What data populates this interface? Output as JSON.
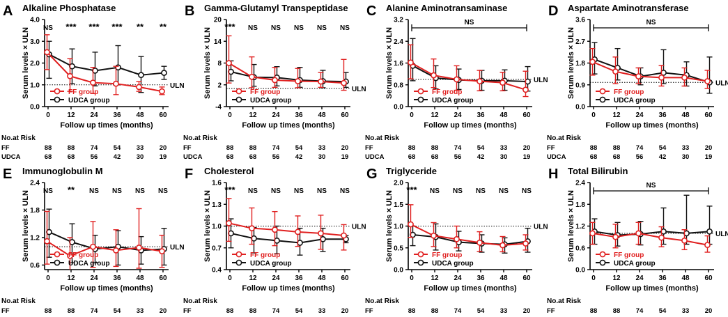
{
  "colors": {
    "ff": "#e02020",
    "udca": "#111111"
  },
  "common": {
    "xlabel": "Follow up times (months)",
    "ylabel": "Serum levels × ULN",
    "x_ticks": [
      "0",
      "12",
      "24",
      "36",
      "48",
      "60"
    ],
    "uln_label": "ULN",
    "legend_ff": "FF group",
    "legend_udca": "UDCA group",
    "risk_title": "No.at Risk",
    "risk_rows": [
      {
        "label": "FF",
        "values": [
          "88",
          "88",
          "74",
          "54",
          "33",
          "20"
        ]
      },
      {
        "label": "UDCA",
        "values": [
          "68",
          "68",
          "56",
          "42",
          "30",
          "19"
        ]
      }
    ]
  },
  "chart_data": [
    {
      "letter": "A",
      "title": "Alkaline Phosphatase",
      "type": "line",
      "y_ticks": [
        "0.0",
        "1.0",
        "2.0",
        "3.0",
        "4.0"
      ],
      "ylim": [
        0,
        4
      ],
      "uln": 1.0,
      "legend": "bottom-left",
      "sig_bracket": null,
      "sig": [
        "NS",
        "***",
        "***",
        "***",
        "**",
        "**"
      ],
      "x": [
        0,
        12,
        24,
        36,
        48,
        60
      ],
      "series": [
        {
          "name": "FF group",
          "values": [
            2.5,
            1.4,
            1.1,
            1.05,
            0.9,
            0.7
          ],
          "err_hi": [
            0.8,
            0.8,
            0.7,
            0.8,
            0.25,
            0.2
          ],
          "err_lo": [
            0.8,
            0.7,
            0.5,
            0.5,
            0.2,
            0.15
          ]
        },
        {
          "name": "UDCA group",
          "values": [
            2.4,
            1.85,
            1.65,
            1.8,
            1.45,
            1.55
          ],
          "err_hi": [
            0.6,
            0.8,
            0.85,
            1.0,
            0.85,
            0.3
          ],
          "err_lo": [
            1.1,
            0.8,
            0.7,
            0.8,
            0.8,
            0.3
          ]
        }
      ]
    },
    {
      "letter": "B",
      "title": "Gamma-Glutamyl Transpeptidase",
      "type": "line",
      "y_ticks": [
        "-4",
        "2",
        "8",
        "14",
        "20"
      ],
      "ylim": [
        -4,
        20
      ],
      "uln": 1.0,
      "legend": "bottom-left",
      "sig_bracket": null,
      "sig": [
        "***",
        "NS",
        "NS",
        "NS",
        "NS",
        "NS"
      ],
      "x": [
        0,
        12,
        24,
        36,
        48,
        60
      ],
      "series": [
        {
          "name": "FF group",
          "values": [
            8.0,
            4.2,
            3.3,
            3.0,
            2.9,
            2.5
          ],
          "err_hi": [
            7.5,
            5.5,
            3.5,
            3.5,
            2.5,
            6.5
          ],
          "err_lo": [
            5.5,
            3.0,
            2.0,
            1.8,
            1.6,
            2.0
          ]
        },
        {
          "name": "UDCA group",
          "values": [
            5.6,
            4.1,
            4.0,
            3.3,
            3.0,
            2.9
          ],
          "err_hi": [
            3.0,
            3.5,
            3.0,
            3.5,
            3.0,
            2.5
          ],
          "err_lo": [
            2.5,
            2.5,
            2.3,
            2.0,
            1.8,
            1.6
          ]
        }
      ]
    },
    {
      "letter": "C",
      "title": "Alanine Aminotransaminase",
      "type": "line",
      "y_ticks": [
        "0.0",
        "0.8",
        "1.6",
        "2.4",
        "3.2"
      ],
      "ylim": [
        0,
        3.2
      ],
      "uln": 1.0,
      "legend": "bottom-left",
      "sig_bracket": "NS",
      "sig": [],
      "x": [
        0,
        12,
        24,
        36,
        48,
        60
      ],
      "series": [
        {
          "name": "FF group",
          "values": [
            1.62,
            1.15,
            1.0,
            0.93,
            0.88,
            0.62
          ],
          "err_hi": [
            0.65,
            0.6,
            0.5,
            0.4,
            0.38,
            0.68
          ],
          "err_lo": [
            0.6,
            0.45,
            0.4,
            0.35,
            0.3,
            0.25
          ]
        },
        {
          "name": "UDCA group",
          "values": [
            1.5,
            1.05,
            0.98,
            0.95,
            0.95,
            0.92
          ],
          "err_hi": [
            1.0,
            0.45,
            0.4,
            0.38,
            0.4,
            0.55
          ],
          "err_lo": [
            0.55,
            0.4,
            0.35,
            0.35,
            0.35,
            0.35
          ]
        }
      ]
    },
    {
      "letter": "D",
      "title": "Aspartate Aminotransferase",
      "type": "line",
      "y_ticks": [
        "0.0",
        "0.9",
        "1.8",
        "2.7",
        "3.6"
      ],
      "ylim": [
        0,
        3.6
      ],
      "uln": 1.0,
      "legend": "bottom-left",
      "sig_bracket": "NS",
      "sig": [],
      "x": [
        0,
        12,
        24,
        36,
        48,
        60
      ],
      "series": [
        {
          "name": "FF group",
          "values": [
            1.85,
            1.45,
            1.25,
            1.2,
            1.2,
            1.05
          ],
          "err_hi": [
            0.55,
            0.6,
            0.35,
            0.5,
            0.4,
            0.45
          ],
          "err_lo": [
            0.55,
            0.5,
            0.3,
            0.35,
            0.35,
            0.3
          ]
        },
        {
          "name": "UDCA group",
          "values": [
            1.95,
            1.6,
            1.25,
            1.4,
            1.3,
            1.0
          ],
          "err_hi": [
            0.7,
            0.8,
            0.35,
            0.95,
            0.55,
            1.05
          ],
          "err_lo": [
            0.6,
            0.5,
            0.35,
            0.45,
            0.45,
            0.45
          ]
        }
      ]
    },
    {
      "letter": "E",
      "title": "Immunoglobulin M",
      "type": "line",
      "y_ticks": [
        "0.6",
        "1.2",
        "1.8",
        "2.4"
      ],
      "ylim": [
        0.5,
        2.4
      ],
      "y_tick_vals": [
        0.6,
        1.2,
        1.8,
        2.4
      ],
      "uln": 1.0,
      "legend": "bottom-left",
      "sig_bracket": null,
      "sig": [
        "NS",
        "**",
        "NS",
        "NS",
        "NS",
        "NS"
      ],
      "x": [
        0,
        12,
        24,
        36,
        48,
        60
      ],
      "series": [
        {
          "name": "FF group",
          "values": [
            1.12,
            0.8,
            1.0,
            0.92,
            0.98,
            0.9
          ],
          "err_hi": [
            0.65,
            0.4,
            0.55,
            0.45,
            0.85,
            0.35
          ],
          "err_lo": [
            0.5,
            0.3,
            0.45,
            0.35,
            0.45,
            0.35
          ]
        },
        {
          "name": "UDCA group",
          "values": [
            1.32,
            1.1,
            0.95,
            1.0,
            0.92,
            0.95
          ],
          "err_hi": [
            0.5,
            0.4,
            0.3,
            0.35,
            0.3,
            0.45
          ],
          "err_lo": [
            0.55,
            0.45,
            0.3,
            0.4,
            0.3,
            0.35
          ]
        }
      ]
    },
    {
      "letter": "F",
      "title": "Cholesterol",
      "type": "line",
      "y_ticks": [
        "0.4",
        "0.7",
        "1.0",
        "1.3",
        "1.6"
      ],
      "ylim": [
        0.4,
        1.6
      ],
      "uln": 1.0,
      "legend": "bottom-left",
      "sig_bracket": null,
      "sig": [
        "***",
        "NS",
        "NS",
        "NS",
        "NS",
        "NS"
      ],
      "x": [
        0,
        12,
        24,
        36,
        48,
        60
      ],
      "series": [
        {
          "name": "FF group",
          "values": [
            1.04,
            0.97,
            0.95,
            0.92,
            0.9,
            0.87
          ],
          "err_hi": [
            0.34,
            0.28,
            0.25,
            0.22,
            0.25,
            0.15
          ],
          "err_lo": [
            0.25,
            0.22,
            0.22,
            0.2,
            0.22,
            0.2
          ]
        },
        {
          "name": "UDCA group",
          "values": [
            0.9,
            0.83,
            0.8,
            0.77,
            0.82,
            0.82
          ],
          "err_hi": [
            0.2,
            0.15,
            0.2,
            0.2,
            0.15,
            0.05
          ],
          "err_lo": [
            0.2,
            0.2,
            0.18,
            0.17,
            0.17,
            0.05
          ]
        }
      ]
    },
    {
      "letter": "G",
      "title": "Triglyceride",
      "type": "line",
      "y_ticks": [
        "0.0",
        "0.5",
        "1.0",
        "1.5",
        "2.0"
      ],
      "ylim": [
        0,
        2.0
      ],
      "uln": 1.0,
      "legend": "bottom-left",
      "sig_bracket": null,
      "sig": [
        "***",
        "NS",
        "NS",
        "NS",
        "NS",
        "NS"
      ],
      "x": [
        0,
        12,
        24,
        36,
        48,
        60
      ],
      "series": [
        {
          "name": "FF group",
          "values": [
            1.04,
            0.78,
            0.7,
            0.62,
            0.56,
            0.6
          ],
          "err_hi": [
            0.45,
            0.3,
            0.3,
            0.25,
            0.2,
            0.2
          ],
          "err_lo": [
            0.3,
            0.25,
            0.2,
            0.2,
            0.15,
            0.15
          ]
        },
        {
          "name": "UDCA group",
          "values": [
            0.8,
            0.75,
            0.63,
            0.6,
            0.58,
            0.65
          ],
          "err_hi": [
            0.2,
            0.3,
            0.25,
            0.2,
            0.15,
            0.3
          ],
          "err_lo": [
            0.25,
            0.3,
            0.2,
            0.2,
            0.2,
            0.25
          ]
        }
      ]
    },
    {
      "letter": "H",
      "title": "Total Bilirubin",
      "type": "line",
      "y_ticks": [
        "0.0",
        "0.6",
        "1.2",
        "1.8",
        "2.4"
      ],
      "ylim": [
        0,
        2.4
      ],
      "uln": 1.0,
      "legend": "bottom-left",
      "sig_bracket": "NS",
      "sig": [],
      "x": [
        0,
        12,
        24,
        36,
        48,
        60
      ],
      "series": [
        {
          "name": "FF group",
          "values": [
            1.0,
            0.9,
            1.0,
            0.88,
            0.8,
            0.68
          ],
          "err_hi": [
            0.3,
            0.35,
            0.3,
            0.3,
            0.3,
            0.25
          ],
          "err_lo": [
            0.3,
            0.3,
            0.3,
            0.25,
            0.25,
            0.2
          ]
        },
        {
          "name": "UDCA group",
          "values": [
            1.05,
            0.95,
            0.98,
            1.05,
            1.0,
            1.05
          ],
          "err_hi": [
            0.35,
            0.35,
            0.35,
            0.65,
            1.05,
            0.7
          ],
          "err_lo": [
            0.35,
            0.3,
            0.3,
            0.35,
            0.3,
            0.35
          ]
        }
      ]
    }
  ]
}
